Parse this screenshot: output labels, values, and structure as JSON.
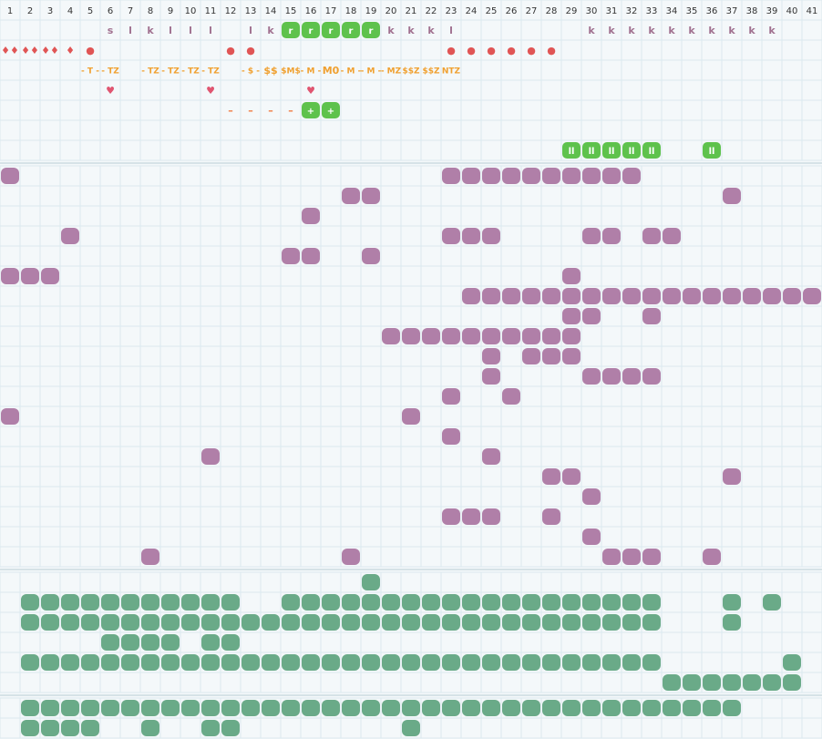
{
  "columns": [
    1,
    2,
    3,
    4,
    5,
    6,
    7,
    8,
    9,
    10,
    11,
    12,
    13,
    14,
    15,
    16,
    17,
    18,
    19,
    20,
    21,
    22,
    23,
    24,
    25,
    26,
    27,
    28,
    29,
    30,
    31,
    32,
    33,
    34,
    35,
    36,
    37,
    38,
    39,
    40,
    41
  ],
  "badge_color": "#5ec24c",
  "top_rows": [
    {
      "color": "#a0708f",
      "cells": [
        {
          "col": 6,
          "text": "s"
        },
        {
          "col": 7,
          "text": "l"
        },
        {
          "col": 8,
          "text": "k"
        },
        {
          "col": 9,
          "text": "l"
        },
        {
          "col": 10,
          "text": "l"
        },
        {
          "col": 11,
          "text": "l"
        },
        {
          "col": 13,
          "text": "l"
        },
        {
          "col": 14,
          "text": "k"
        },
        {
          "col": 15,
          "text": "r",
          "badge": true
        },
        {
          "col": 16,
          "text": "r",
          "badge": true
        },
        {
          "col": 17,
          "text": "r",
          "badge": true
        },
        {
          "col": 18,
          "text": "r",
          "badge": true
        },
        {
          "col": 19,
          "text": "r",
          "badge": true
        },
        {
          "col": 20,
          "text": "k"
        },
        {
          "col": 21,
          "text": "k"
        },
        {
          "col": 22,
          "text": "k"
        },
        {
          "col": 23,
          "text": "l"
        },
        {
          "col": 30,
          "text": "k"
        },
        {
          "col": 31,
          "text": "k"
        },
        {
          "col": 32,
          "text": "k"
        },
        {
          "col": 33,
          "text": "k"
        },
        {
          "col": 34,
          "text": "k"
        },
        {
          "col": 35,
          "text": "k"
        },
        {
          "col": 36,
          "text": "k"
        },
        {
          "col": 37,
          "text": "k"
        },
        {
          "col": 38,
          "text": "k"
        },
        {
          "col": 39,
          "text": "k"
        }
      ]
    },
    {
      "color": "#e05555",
      "cells": [
        {
          "col": 1,
          "text": "♦♦"
        },
        {
          "col": 2,
          "text": "♦♦"
        },
        {
          "col": 3,
          "text": "♦♦"
        },
        {
          "col": 4,
          "text": "♦"
        },
        {
          "col": 5,
          "text": "●"
        },
        {
          "col": 12,
          "text": "●"
        },
        {
          "col": 13,
          "text": "●"
        },
        {
          "col": 23,
          "text": "●"
        },
        {
          "col": 24,
          "text": "●"
        },
        {
          "col": 25,
          "text": "●"
        },
        {
          "col": 26,
          "text": "●"
        },
        {
          "col": 27,
          "text": "●"
        },
        {
          "col": 28,
          "text": "●"
        }
      ]
    },
    {
      "color": "#f0a030",
      "cells": [
        {
          "col": 5,
          "text": "- T -"
        },
        {
          "col": 6,
          "text": "- TZ"
        },
        {
          "col": 8,
          "text": "- TZ"
        },
        {
          "col": 9,
          "text": "- TZ"
        },
        {
          "col": 10,
          "text": "- TZ"
        },
        {
          "col": 11,
          "text": "- TZ"
        },
        {
          "col": 13,
          "text": "- $ -"
        },
        {
          "col": 14,
          "text": "$$"
        },
        {
          "col": 15,
          "text": "$M$"
        },
        {
          "col": 16,
          "text": "- M -"
        },
        {
          "col": 17,
          "text": "M0"
        },
        {
          "col": 18,
          "text": "- M -"
        },
        {
          "col": 19,
          "text": "- M -"
        },
        {
          "col": 20,
          "text": "- MZ"
        },
        {
          "col": 21,
          "text": "$$Z"
        },
        {
          "col": 22,
          "text": "$$Z"
        },
        {
          "col": 23,
          "text": "NTZ"
        }
      ]
    },
    {
      "color": "#e05570",
      "cells": [
        {
          "col": 6,
          "text": "♥"
        },
        {
          "col": 11,
          "text": "♥"
        },
        {
          "col": 16,
          "text": "♥"
        }
      ]
    },
    {
      "color": "#f07a40",
      "cells": [
        {
          "col": 12,
          "text": "–"
        },
        {
          "col": 13,
          "text": "–"
        },
        {
          "col": 14,
          "text": "–"
        },
        {
          "col": 15,
          "text": "–"
        },
        {
          "col": 16,
          "text": "+",
          "badge": true
        },
        {
          "col": 17,
          "text": "+",
          "badge": true
        }
      ]
    },
    {
      "color": "#a0708f",
      "cells": []
    },
    {
      "color": "#a0708f",
      "cells": [
        {
          "col": 29,
          "text": "ll",
          "badge": true
        },
        {
          "col": 30,
          "text": "ll",
          "badge": true
        },
        {
          "col": 31,
          "text": "ll",
          "badge": true
        },
        {
          "col": 32,
          "text": "ll",
          "badge": true
        },
        {
          "col": 33,
          "text": "ll",
          "badge": true
        },
        {
          "col": 36,
          "text": "ll",
          "badge": true
        }
      ]
    }
  ],
  "blob_sections": [
    {
      "color": "#b07fa8",
      "rows": [
        [
          1,
          23,
          24,
          25,
          26,
          27,
          28,
          29,
          30,
          31,
          32
        ],
        [
          18,
          19,
          37
        ],
        [
          16
        ],
        [
          4,
          23,
          24,
          25,
          30,
          31,
          33,
          34
        ],
        [
          15,
          16,
          19
        ],
        [
          1,
          2,
          3,
          29
        ],
        [
          24,
          25,
          26,
          27,
          28,
          29,
          30,
          31,
          32,
          33,
          34,
          35,
          36,
          37,
          38,
          39,
          40,
          41
        ],
        [
          29,
          30,
          33
        ],
        [
          20,
          21,
          22,
          23,
          24,
          25,
          26,
          27,
          28,
          29
        ],
        [
          25,
          27,
          28,
          29
        ],
        [
          25,
          30,
          31,
          32,
          33
        ],
        [
          23,
          26
        ],
        [
          1,
          21
        ],
        [
          23
        ],
        [
          11,
          25
        ],
        [
          28,
          29,
          37
        ],
        [
          30
        ],
        [
          23,
          24,
          25,
          28
        ],
        [
          30
        ],
        [
          8,
          18,
          31,
          32,
          33,
          36
        ]
      ]
    },
    {
      "color": "#6aaa88",
      "rows": [
        [
          19
        ],
        [
          2,
          3,
          4,
          5,
          6,
          7,
          8,
          9,
          10,
          11,
          12,
          15,
          16,
          17,
          18,
          19,
          20,
          21,
          22,
          23,
          24,
          25,
          26,
          27,
          28,
          29,
          30,
          31,
          32,
          33,
          37,
          39
        ],
        [
          2,
          3,
          4,
          5,
          6,
          7,
          8,
          9,
          10,
          11,
          12,
          13,
          14,
          15,
          16,
          17,
          18,
          19,
          20,
          21,
          22,
          23,
          24,
          25,
          26,
          27,
          28,
          29,
          30,
          31,
          32,
          33,
          37
        ],
        [
          6,
          7,
          8,
          9,
          11,
          12
        ],
        [
          2,
          3,
          4,
          5,
          6,
          7,
          8,
          9,
          10,
          11,
          12,
          13,
          14,
          15,
          16,
          17,
          18,
          19,
          20,
          21,
          22,
          23,
          24,
          25,
          26,
          27,
          28,
          29,
          30,
          31,
          32,
          33,
          40
        ],
        [
          34,
          35,
          36,
          37,
          38,
          39,
          40
        ]
      ]
    },
    {
      "color": "#6aaa88",
      "rows": [
        [
          2,
          3,
          4,
          5,
          6,
          7,
          8,
          9,
          10,
          11,
          12,
          13,
          14,
          15,
          16,
          17,
          18,
          19,
          20,
          21,
          22,
          23,
          24,
          25,
          26,
          27,
          28,
          29,
          30,
          31,
          32,
          33,
          34,
          35,
          36,
          37
        ],
        [
          2,
          3,
          4,
          5,
          8,
          11,
          12,
          21
        ]
      ]
    }
  ]
}
